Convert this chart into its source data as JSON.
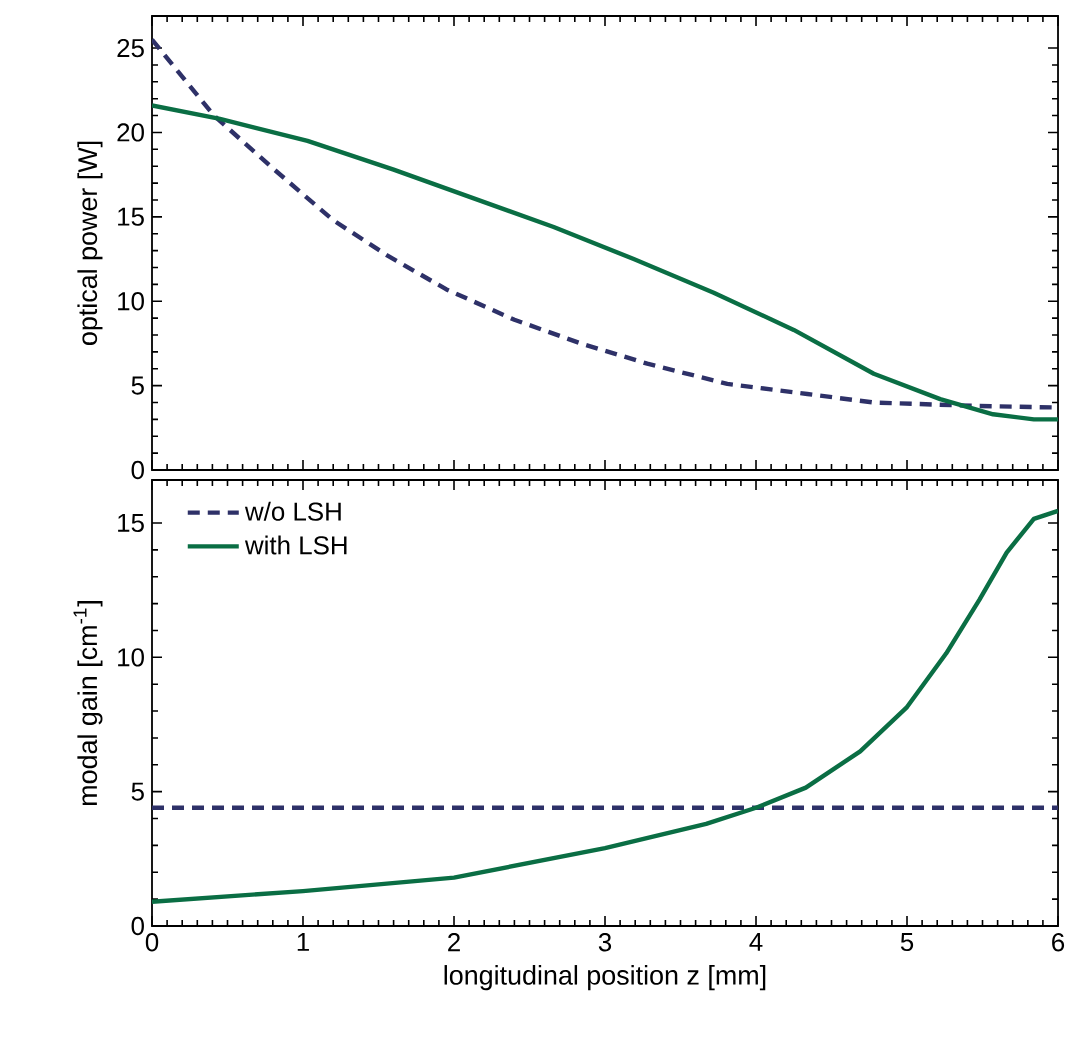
{
  "chart_data": [
    {
      "type": "line",
      "ylabel": "optical power [W]",
      "xlim": [
        0,
        6
      ],
      "xticks": [
        0,
        1,
        2,
        3,
        4,
        5,
        6
      ],
      "ylim": [
        0,
        26.9
      ],
      "yticks": [
        0,
        5,
        10,
        15,
        20,
        25
      ],
      "tick_labels": "y",
      "marker": "none",
      "series": [
        {
          "color": "#2e3168",
          "line_style": "dashed",
          "x": [
            0,
            0.41,
            0.81,
            1.2,
            1.56,
            1.95,
            2.4,
            2.84,
            3.28,
            3.81,
            4.34,
            4.78,
            5.44,
            6
          ],
          "values": [
            25.5,
            21.0,
            17.8,
            14.8,
            12.7,
            10.7,
            8.9,
            7.5,
            6.3,
            5.1,
            4.5,
            4.0,
            3.8,
            3.7
          ]
        },
        {
          "color": "#0a6e44",
          "line_style": "solid",
          "x": [
            0,
            0.45,
            1.03,
            1.6,
            2.13,
            2.66,
            3.19,
            3.72,
            4.25,
            4.78,
            5.22,
            5.57,
            5.84,
            6
          ],
          "values": [
            21.6,
            20.8,
            19.5,
            17.8,
            16.1,
            14.4,
            12.5,
            10.5,
            8.3,
            5.7,
            4.2,
            3.3,
            3.0,
            3.0
          ]
        }
      ]
    },
    {
      "type": "line",
      "xlabel": "longitudinal position z [mm]",
      "ylabel": "modal gain [cm$^{-1}$]",
      "xlim": [
        0,
        6
      ],
      "xticks": [
        0,
        1,
        2,
        3,
        4,
        5,
        6
      ],
      "ylim": [
        0,
        16.6
      ],
      "yticks": [
        0,
        5,
        10,
        15
      ],
      "legend": "top left",
      "marker": "none",
      "series": [
        {
          "name": "w/o LSH",
          "color": "#2e3168",
          "line_style": "dashed",
          "x": [
            0,
            6
          ],
          "values": [
            4.4,
            4.4
          ]
        },
        {
          "name": "with LSH",
          "color": "#0a6e44",
          "line_style": "solid",
          "x": [
            0,
            1,
            2,
            3,
            3.67,
            4,
            4.33,
            4.69,
            5,
            5.26,
            5.48,
            5.66,
            5.84,
            6
          ],
          "values": [
            0.9,
            1.3,
            1.8,
            2.9,
            3.8,
            4.4,
            5.15,
            6.5,
            8.15,
            10.15,
            12.15,
            13.9,
            15.15,
            15.45
          ]
        }
      ]
    }
  ]
}
